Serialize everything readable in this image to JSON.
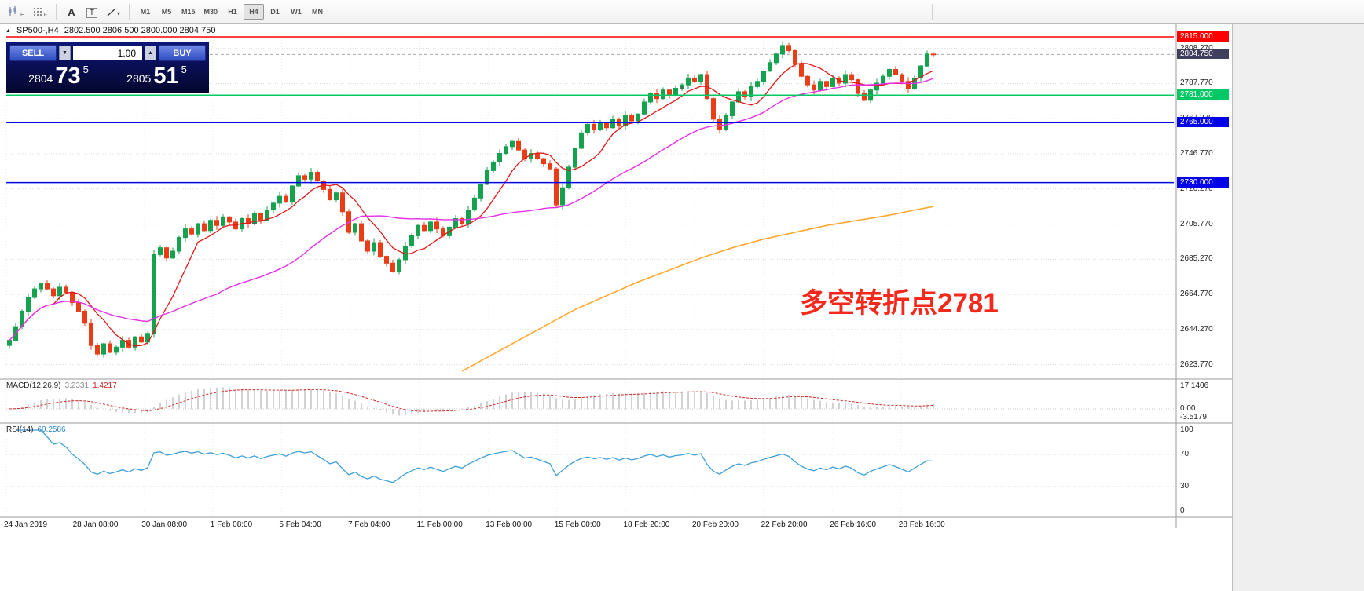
{
  "toolbar": {
    "timeframes": [
      "M1",
      "M5",
      "M15",
      "M30",
      "H1",
      "H4",
      "D1",
      "W1",
      "MN"
    ],
    "active_timeframe": "H4"
  },
  "icons": {
    "collapse_panel": "▲",
    "volume_down": "▼",
    "volume_up": "▲",
    "chevron_down": "▾",
    "text_tool": "A",
    "label_tool": "T",
    "sub_e": "E",
    "sub_f": "F",
    "marker_plus": "+"
  },
  "header": {
    "symbol": "SP500-,H4",
    "quotes": "2802.500 2806.500 2800.000 2804.750"
  },
  "trade_panel": {
    "sell_label": "SELL",
    "buy_label": "BUY",
    "volume": "1.00",
    "sell_price_main": "2804",
    "sell_price_pips": "73",
    "sell_price_frac": "5",
    "buy_price_main": "2805",
    "buy_price_pips": "51",
    "buy_price_frac": "5"
  },
  "annotation": {
    "text": "多空转折点2781"
  },
  "macd": {
    "name": "MACD(12,26,9)",
    "value_main": "3.2331",
    "value_signal": "1.4217",
    "axis": [
      "17.1406",
      "0.00",
      "-3.5179"
    ]
  },
  "rsi": {
    "name": "RSI(14)",
    "value": "60.2586",
    "axis": [
      "100",
      "70",
      "30",
      "0"
    ]
  },
  "time_axis": {
    "labels": [
      "24 Jan 2019",
      "28 Jan 08:00",
      "30 Jan 08:00",
      "1 Feb 08:00",
      "5 Feb 04:00",
      "7 Feb 04:00",
      "11 Feb 00:00",
      "13 Feb 00:00",
      "15 Feb 00:00",
      "18 Feb 20:00",
      "20 Feb 20:00",
      "22 Feb 20:00",
      "26 Feb 16:00",
      "28 Feb 16:00"
    ]
  },
  "colors": {
    "candle_up": "#14a24e",
    "candle_down": "#ea3d17",
    "ma_fast": "#e41717",
    "ma_mid": "#e62ee6",
    "ma_long": "#ffa72e",
    "macd_hist": "#bfbfbf",
    "macd_signal": "#d62222",
    "rsi_line": "#3d9fd8",
    "grid": "#dcdcdc",
    "annotation": "#f5281c",
    "bid_badge": "#40405e",
    "level_red": "#ff0000",
    "level_green": "#00c864",
    "level_blue": "#0202e8",
    "panel_from": "#0d1778",
    "panel_to": "#04062c",
    "btn_from": "#7189e8",
    "btn_to": "#2d4cc0"
  },
  "chart_data": {
    "type": "candlestick",
    "title": "SP500- H4",
    "ylim": [
      2625,
      2815
    ],
    "price_ticks": [
      "2808.270",
      "2787.770",
      "2767.270",
      "2746.770",
      "2726.270",
      "2705.770",
      "2685.270",
      "2664.770",
      "2644.270",
      "2623.770"
    ],
    "levels": [
      {
        "label": "2815.000",
        "price": 2815.0,
        "color_key": "level_red"
      },
      {
        "label": "2781.000",
        "price": 2781.0,
        "color_key": "level_green"
      },
      {
        "label": "2765.000",
        "price": 2765.0,
        "color_key": "level_blue"
      },
      {
        "label": "2730.000",
        "price": 2730.0,
        "color_key": "level_blue"
      }
    ],
    "bid": {
      "label": "2804.750",
      "price": 2804.75
    },
    "first_open": 2635,
    "closes": [
      2638,
      2646,
      2655,
      2663,
      2668,
      2671,
      2668,
      2664,
      2669,
      2666,
      2660,
      2655,
      2648,
      2635,
      2630,
      2636,
      2631,
      2634,
      2638,
      2634,
      2640,
      2637,
      2642,
      2688,
      2692,
      2686,
      2690,
      2698,
      2703,
      2700,
      2706,
      2702,
      2708,
      2705,
      2710,
      2707,
      2703,
      2709,
      2706,
      2712,
      2708,
      2714,
      2718,
      2722,
      2719,
      2728,
      2734,
      2732,
      2736,
      2731,
      2726,
      2720,
      2724,
      2713,
      2701,
      2706,
      2696,
      2690,
      2695,
      2687,
      2683,
      2678,
      2685,
      2693,
      2699,
      2705,
      2702,
      2707,
      2703,
      2699,
      2704,
      2709,
      2706,
      2714,
      2721,
      2729,
      2737,
      2742,
      2747,
      2751,
      2754,
      2749,
      2744,
      2747,
      2744,
      2741,
      2738,
      2717,
      2727,
      2739,
      2750,
      2759,
      2764,
      2761,
      2765,
      2762,
      2767,
      2763,
      2769,
      2766,
      2770,
      2777,
      2782,
      2779,
      2784,
      2781,
      2785,
      2787,
      2791,
      2789,
      2793,
      2779,
      2767,
      2761,
      2769,
      2777,
      2783,
      2780,
      2786,
      2789,
      2795,
      2800,
      2805,
      2810,
      2807,
      2799,
      2792,
      2787,
      2784,
      2789,
      2786,
      2791,
      2788,
      2793,
      2790,
      2782,
      2778,
      2784,
      2788,
      2792,
      2796,
      2793,
      2789,
      2785,
      2791,
      2798,
      2805,
      2804.75
    ],
    "long_ma_points": [
      [
        72,
        2620
      ],
      [
        76,
        2628
      ],
      [
        80,
        2636
      ],
      [
        85,
        2646
      ],
      [
        90,
        2656
      ],
      [
        95,
        2664
      ],
      [
        100,
        2672
      ],
      [
        105,
        2679
      ],
      [
        110,
        2686
      ],
      [
        115,
        2692
      ],
      [
        120,
        2697
      ],
      [
        125,
        2701
      ],
      [
        130,
        2705
      ],
      [
        135,
        2708
      ],
      [
        140,
        2711
      ],
      [
        144,
        2714
      ],
      [
        147,
        2716
      ]
    ],
    "markers": [
      {
        "index": 39,
        "price": 2706
      },
      {
        "index": 107,
        "price": 2785
      }
    ],
    "indicators": {
      "ma_fast_period": 8,
      "ma_mid_period": 34,
      "macd_params": [
        12,
        26,
        9
      ],
      "rsi_period": 14
    }
  }
}
